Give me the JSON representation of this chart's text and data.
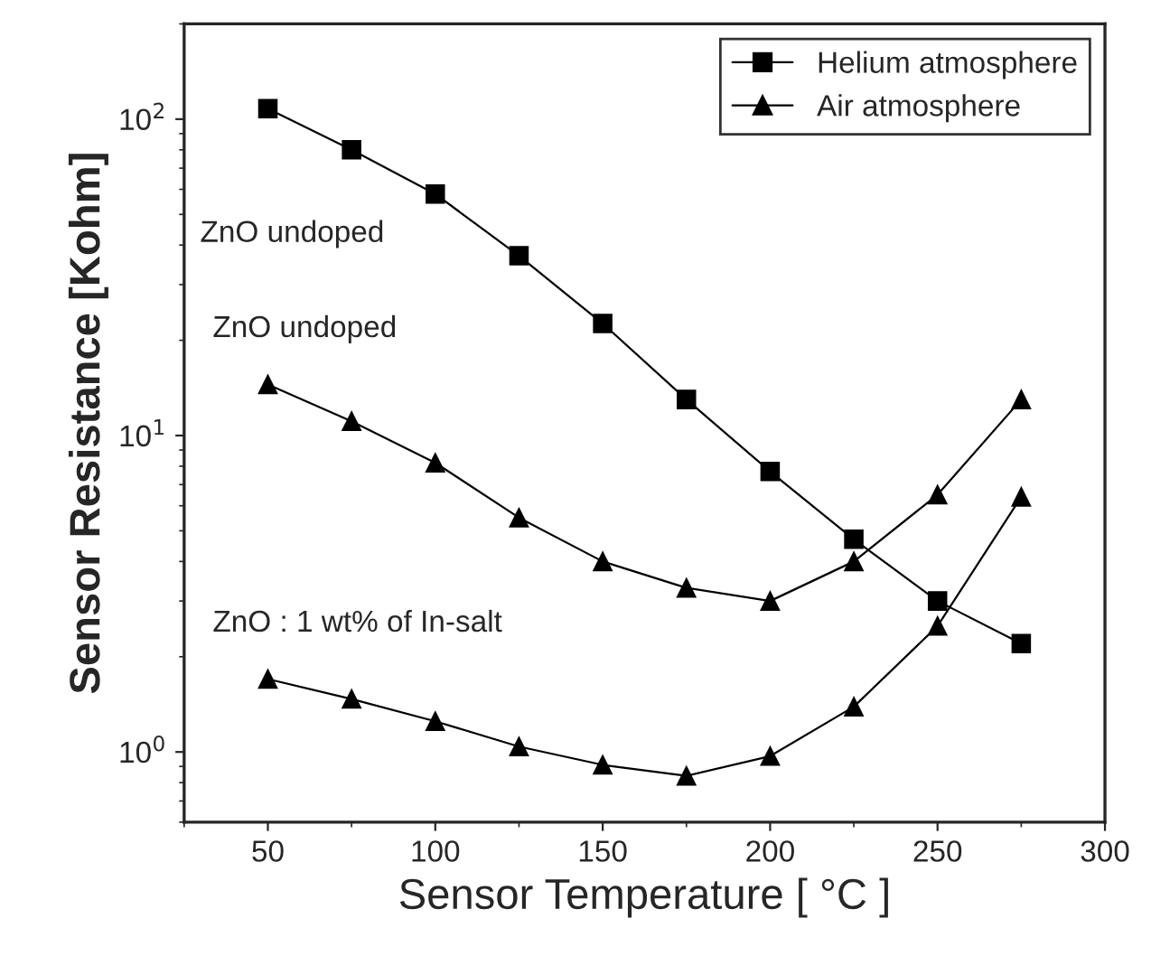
{
  "chart_data": {
    "type": "line",
    "xlabel": "Sensor Temperature [ °C ]",
    "ylabel": "Sensor Resistance [Kohm]",
    "x": [
      50,
      75,
      100,
      125,
      150,
      175,
      200,
      225,
      250,
      275
    ],
    "series": [
      {
        "name": "Helium atmosphere",
        "color": "#000000",
        "marker": "square",
        "values": [
          108,
          80,
          58,
          37,
          22.6,
          13,
          7.7,
          4.7,
          3.0,
          2.2
        ]
      },
      {
        "name": "Air atmosphere",
        "color": "#000000",
        "marker": "triangle",
        "values": [
          14.5,
          11.1,
          8.2,
          5.5,
          4.0,
          3.3,
          3.0,
          4.0,
          6.5,
          13
        ]
      },
      {
        "color": "#000000",
        "marker": "triangle",
        "values": [
          1.7,
          1.47,
          1.25,
          1.04,
          0.91,
          0.84,
          0.97,
          1.39,
          2.5,
          6.4
        ]
      }
    ],
    "annotations": [
      "ZnO undoped",
      "ZnO undoped",
      "ZnO : 1 wt% of In-salt"
    ],
    "log": "y",
    "xlim": [
      25,
      300
    ],
    "xticks": [
      50,
      100,
      150,
      200,
      250,
      300
    ],
    "ylim": [
      0.6,
      200
    ],
    "yticks": [
      {
        "value": 1,
        "label": "10$^{0}$"
      },
      {
        "value": 10,
        "label": "10$^{1}$"
      },
      {
        "value": 100,
        "label": "10$^{2}$"
      }
    ],
    "grid": false,
    "legend": "top right",
    "line_style": "solid"
  }
}
